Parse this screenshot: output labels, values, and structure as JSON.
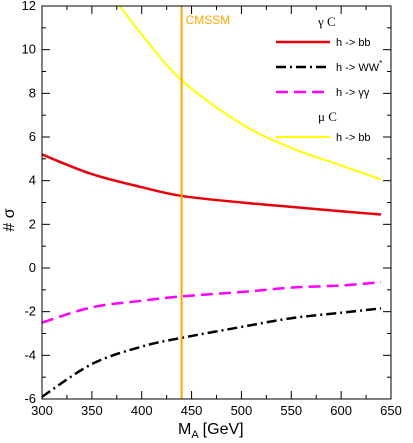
{
  "chart_data": {
    "type": "line",
    "xlabel": "M",
    "xlabel_sub": "A",
    "xlabel_unit": "[GeV]",
    "ylabel": "# σ",
    "xlim": [
      300,
      650
    ],
    "ylim": [
      -6,
      12
    ],
    "x_ticks": [
      300,
      350,
      400,
      450,
      500,
      550,
      600,
      650
    ],
    "y_ticks": [
      -6,
      -4,
      -2,
      0,
      2,
      4,
      6,
      8,
      10,
      12
    ],
    "grid": false,
    "legend_position": "top-right",
    "legend": [
      {
        "kind": "header",
        "text": "γ C"
      },
      {
        "kind": "entry",
        "text": "h -> bb",
        "series": 0
      },
      {
        "kind": "entry",
        "text": "h -> WW",
        "sup": "*",
        "series": 1
      },
      {
        "kind": "entry",
        "text": "h -> γγ",
        "series": 2
      },
      {
        "kind": "header",
        "text": "μ C"
      },
      {
        "kind": "entry",
        "text": "h -> bb",
        "series": 3
      }
    ],
    "series": [
      {
        "legend_group": "γ C",
        "name": "h -> bb",
        "color": "#e8000b",
        "dash": "solid",
        "width": 2.5,
        "x": [
          300,
          350,
          400,
          440,
          500,
          550,
          600,
          640
        ],
        "y": [
          5.2,
          4.3,
          3.7,
          3.3,
          3.0,
          2.8,
          2.6,
          2.45
        ]
      },
      {
        "legend_group": "γ C",
        "name": "h -> WW*",
        "color": "#000000",
        "dash": "dashdot",
        "width": 2.5,
        "x": [
          300,
          350,
          400,
          440,
          500,
          550,
          600,
          640
        ],
        "y": [
          -5.9,
          -4.4,
          -3.6,
          -3.2,
          -2.7,
          -2.3,
          -2.05,
          -1.85
        ]
      },
      {
        "legend_group": "γ C",
        "name": "h -> γγ",
        "color": "#ff00ff",
        "dash": "dashed",
        "width": 2.5,
        "x": [
          300,
          350,
          400,
          440,
          500,
          550,
          600,
          640
        ],
        "y": [
          -2.5,
          -1.8,
          -1.5,
          -1.3,
          -1.1,
          -0.9,
          -0.8,
          -0.65
        ]
      },
      {
        "legend_group": "μ C",
        "name": "h -> bb",
        "color": "#ffff00",
        "dash": "solid",
        "width": 2,
        "x": [
          378,
          400,
          440,
          500,
          550,
          600,
          640
        ],
        "y": [
          12,
          10.7,
          8.6,
          6.6,
          5.5,
          4.7,
          4.05
        ]
      }
    ],
    "annotation": {
      "text": "CMSSM",
      "x": 440,
      "color": "#ffa500"
    }
  }
}
